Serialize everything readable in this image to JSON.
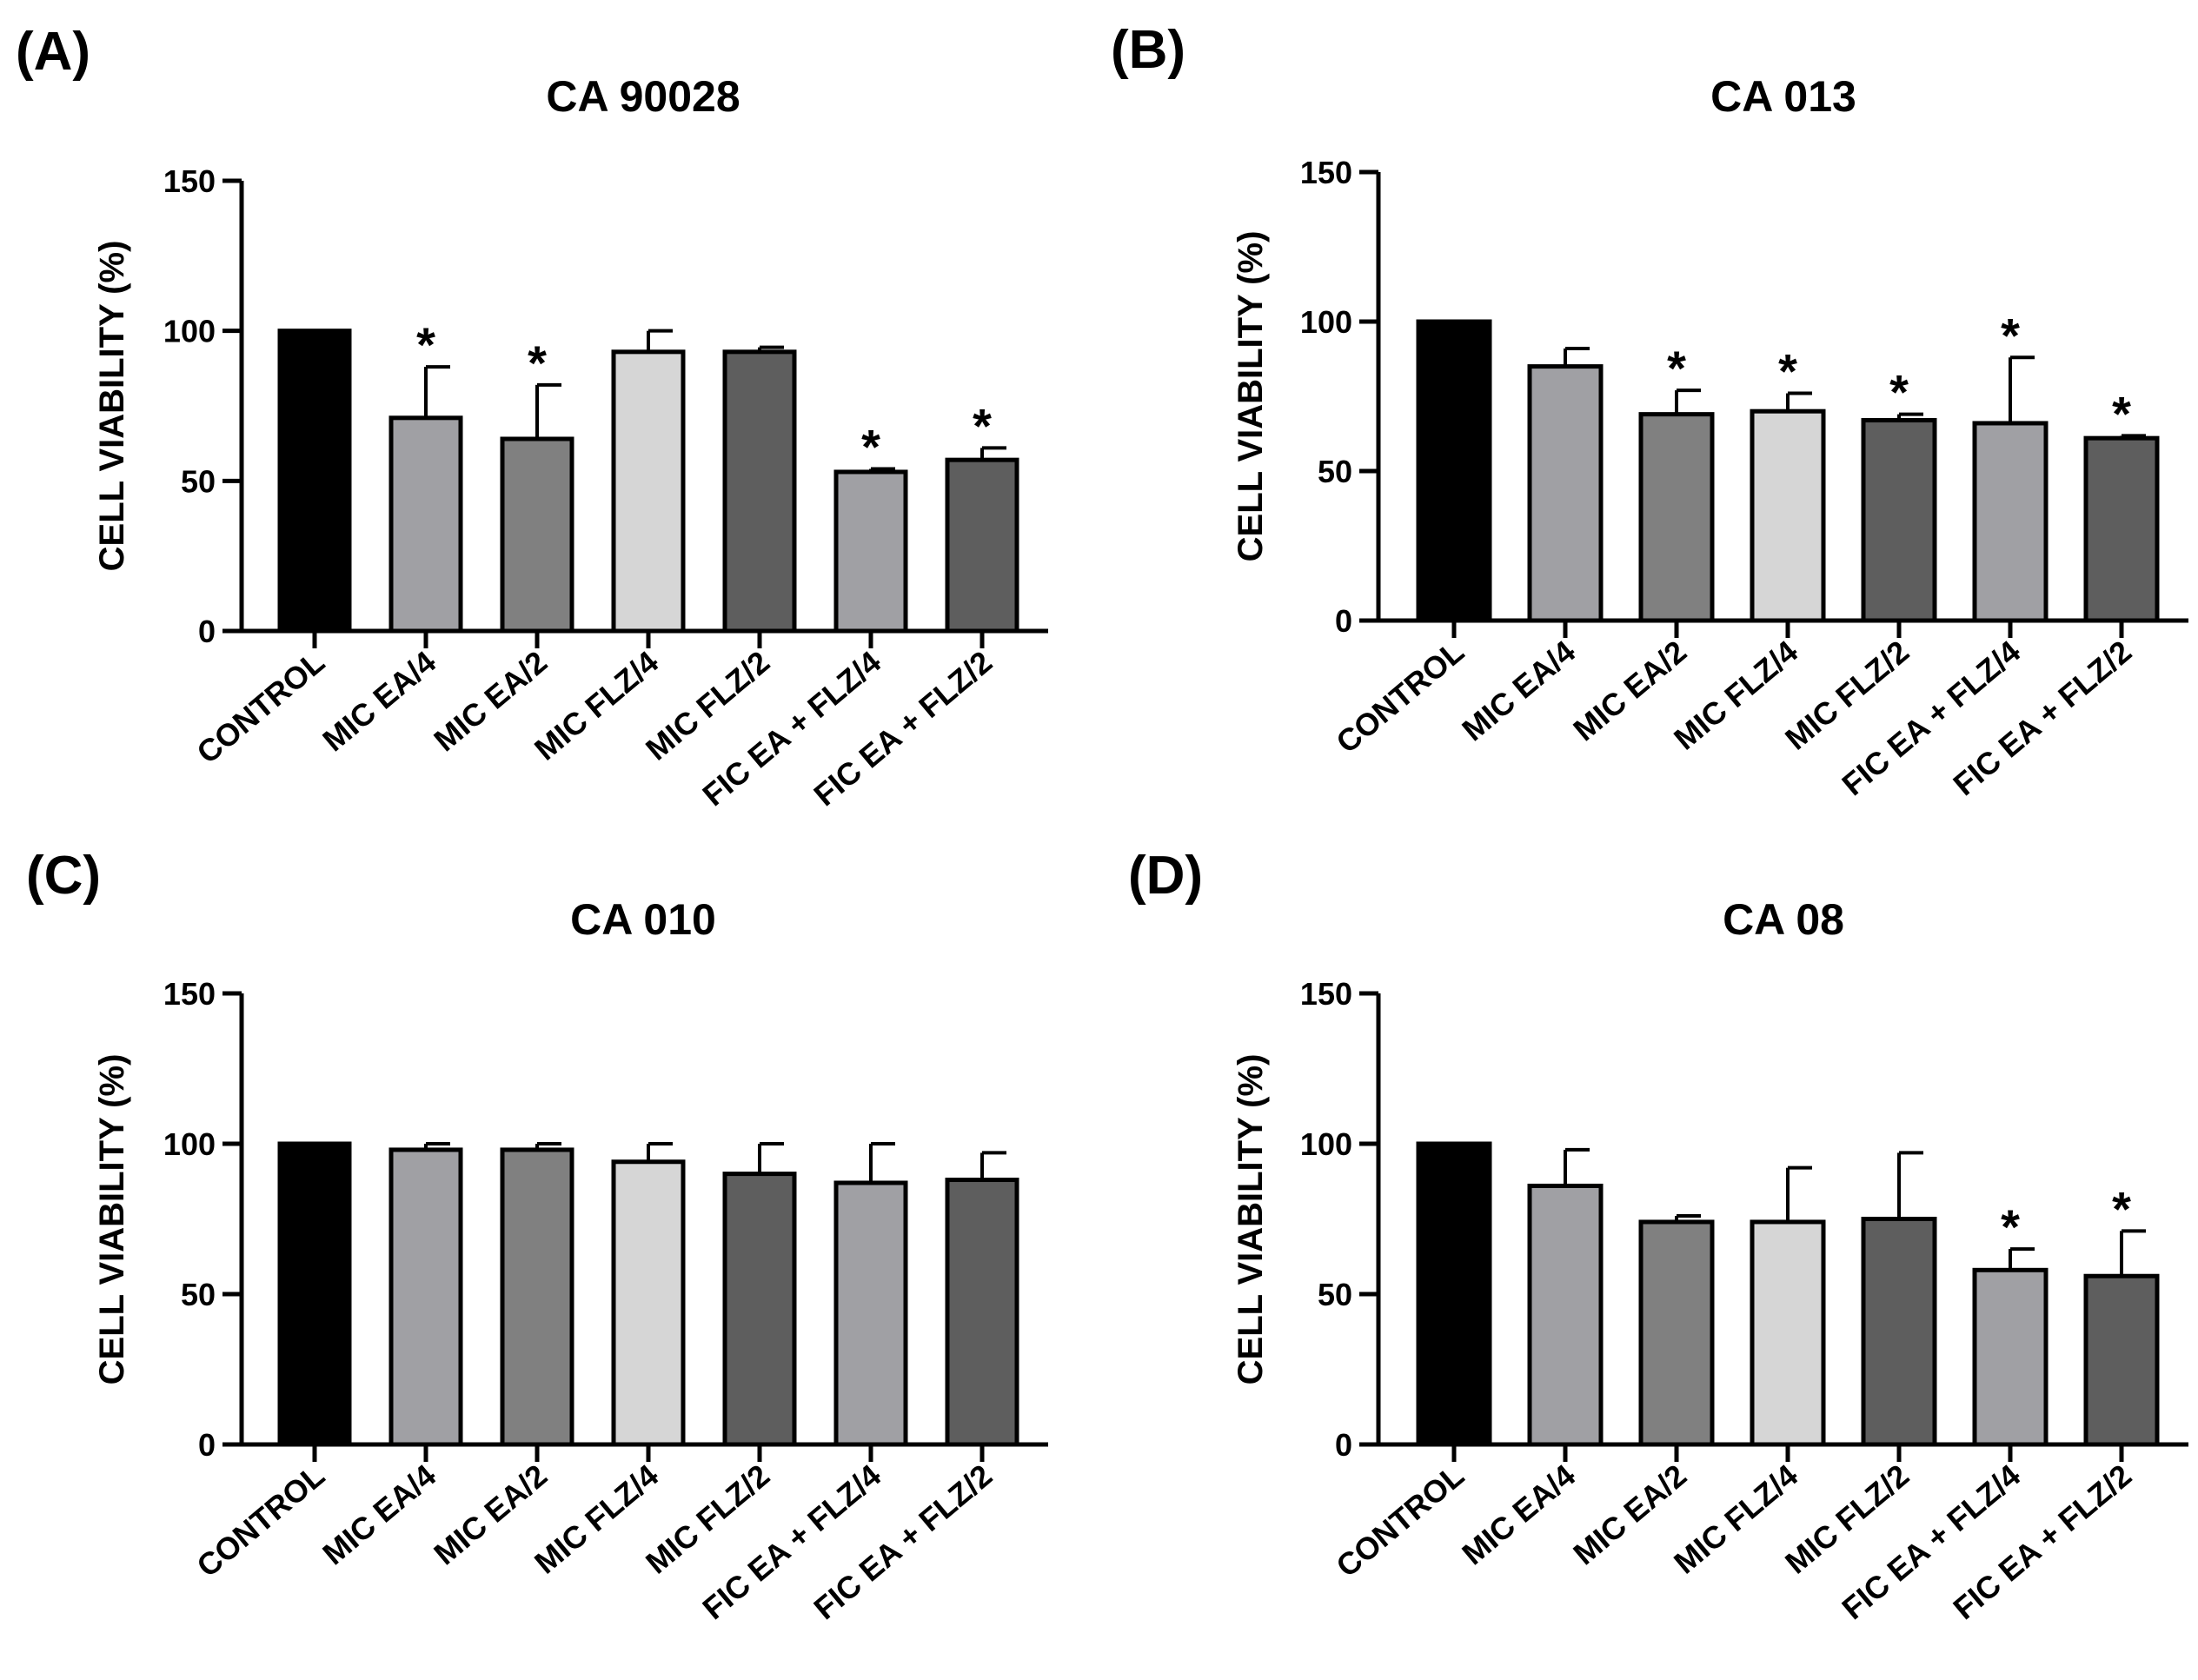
{
  "chart_data": [
    {
      "type": "bar",
      "panel": "(A)",
      "title": "CA 90028",
      "ylabel": "CELL VIABILITY (%)",
      "xlabel": "",
      "ylim": [
        0,
        150
      ],
      "yticks": [
        0,
        50,
        100,
        150
      ],
      "categories": [
        "CONTROL",
        "MIC EA/4",
        "MIC EA/2",
        "MIC FLZ/4",
        "MIC FLZ/2",
        "FIC EA + FLZ/4",
        "FIC EA + FLZ/2"
      ],
      "values": [
        100,
        71,
        64,
        93,
        93,
        53,
        57
      ],
      "errors": [
        0,
        17,
        18,
        7,
        1.5,
        1,
        4
      ],
      "significance": [
        "",
        "*",
        "*",
        "",
        "",
        "*",
        "*"
      ],
      "colors": [
        "#000000",
        "#a0a0a4",
        "#808080",
        "#d6d6d6",
        "#5e5e5e",
        "#a0a0a4",
        "#5e5e5e"
      ]
    },
    {
      "type": "bar",
      "panel": "(B)",
      "title": "CA 013",
      "ylabel": "CELL VIABILITY (%)",
      "xlabel": "",
      "ylim": [
        0,
        150
      ],
      "yticks": [
        0,
        50,
        100,
        150
      ],
      "categories": [
        "CONTROL",
        "MIC EA/4",
        "MIC EA/2",
        "MIC FLZ/4",
        "MIC FLZ/2",
        "FIC EA + FLZ/4",
        "FIC EA + FLZ/2"
      ],
      "values": [
        100,
        85,
        69,
        70,
        67,
        66,
        61
      ],
      "errors": [
        0,
        6,
        8,
        6,
        2,
        22,
        0.8
      ],
      "significance": [
        "",
        "",
        "*",
        "*",
        "*",
        "*",
        "*"
      ],
      "colors": [
        "#000000",
        "#a0a0a4",
        "#808080",
        "#d6d6d6",
        "#5e5e5e",
        "#a0a0a4",
        "#5e5e5e"
      ]
    },
    {
      "type": "bar",
      "panel": "(C)",
      "title": "CA 010",
      "ylabel": "CELL VIABILITY (%)",
      "xlabel": "",
      "ylim": [
        0,
        150
      ],
      "yticks": [
        0,
        50,
        100,
        150
      ],
      "categories": [
        "CONTROL",
        "MIC EA/4",
        "MIC EA/2",
        "MIC FLZ/4",
        "MIC FLZ/2",
        "FIC EA + FLZ/4",
        "FIC EA + FLZ/2"
      ],
      "values": [
        100,
        98,
        98,
        94,
        90,
        87,
        88
      ],
      "errors": [
        0,
        2,
        2,
        6,
        10,
        13,
        9
      ],
      "significance": [
        "",
        "",
        "",
        "",
        "",
        "",
        ""
      ],
      "colors": [
        "#000000",
        "#a0a0a4",
        "#808080",
        "#d6d6d6",
        "#5e5e5e",
        "#a0a0a4",
        "#5e5e5e"
      ]
    },
    {
      "type": "bar",
      "panel": "(D)",
      "title": "CA 08",
      "ylabel": "CELL VIABILITY (%)",
      "xlabel": "",
      "ylim": [
        0,
        150
      ],
      "yticks": [
        0,
        50,
        100,
        150
      ],
      "categories": [
        "CONTROL",
        "MIC EA/4",
        "MIC EA/2",
        "MIC FLZ/4",
        "MIC FLZ/2",
        "FIC EA + FLZ/4",
        "FIC EA + FLZ/2"
      ],
      "values": [
        100,
        86,
        74,
        74,
        75,
        58,
        56
      ],
      "errors": [
        0,
        12,
        2,
        18,
        22,
        7,
        15
      ],
      "significance": [
        "",
        "",
        "",
        "",
        "",
        "*",
        "*"
      ],
      "colors": [
        "#000000",
        "#a0a0a4",
        "#808080",
        "#d6d6d6",
        "#5e5e5e",
        "#a0a0a4",
        "#5e5e5e"
      ]
    }
  ]
}
